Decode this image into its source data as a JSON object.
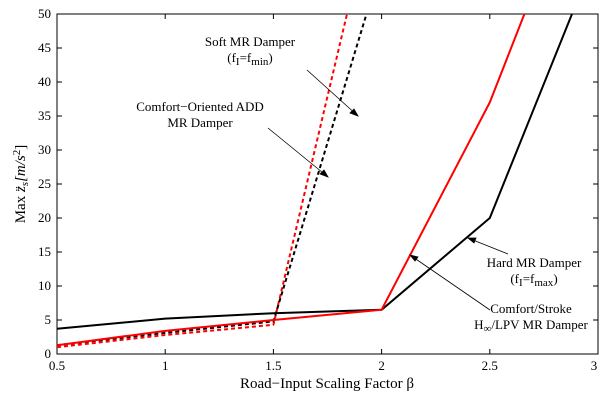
{
  "chart_data": {
    "type": "line",
    "xlabel": "Road−Input Scaling Factor β",
    "ylabel_main": "Max ",
    "ylabel_math": "z̈",
    "ylabel_sub": "s",
    "ylabel_units": "[m/s",
    "ylabel_units_sup": "2",
    "ylabel_units_close": "]",
    "xlim": [
      0.5,
      3
    ],
    "ylim": [
      0,
      50
    ],
    "grid": false,
    "x_ticks": [
      "0.5",
      "1",
      "1.5",
      "2",
      "2.5",
      "3"
    ],
    "x_tick_values": [
      0.5,
      1,
      1.5,
      2,
      2.5,
      3
    ],
    "y_ticks": [
      "0",
      "5",
      "10",
      "15",
      "20",
      "25",
      "30",
      "35",
      "40",
      "45",
      "50"
    ],
    "y_tick_values": [
      0,
      5,
      10,
      15,
      20,
      25,
      30,
      35,
      40,
      45,
      50
    ],
    "series": [
      {
        "key": "soft",
        "color": "#ff0000",
        "dash": "4,3",
        "x": [
          0.5,
          1.0,
          1.5,
          1.84
        ],
        "y": [
          1.0,
          2.8,
          4.3,
          50
        ]
      },
      {
        "key": "add",
        "color": "#000000",
        "dash": "4,3",
        "x": [
          0.5,
          1.0,
          1.5,
          1.93
        ],
        "y": [
          1.3,
          3.1,
          4.8,
          50
        ]
      },
      {
        "key": "hard",
        "color": "#000000",
        "dash": "",
        "x": [
          0.5,
          1.0,
          1.5,
          2.0,
          2.5,
          2.88
        ],
        "y": [
          3.7,
          5.2,
          6.0,
          6.5,
          20.0,
          50
        ]
      },
      {
        "key": "comfort_stroke",
        "color": "#ff0000",
        "dash": "",
        "x": [
          0.5,
          1.0,
          1.5,
          2.0,
          2.5,
          2.66
        ],
        "y": [
          1.3,
          3.4,
          5.0,
          6.5,
          37.0,
          50
        ]
      }
    ],
    "annotations": {
      "soft": {
        "line1": "Soft MR Damper",
        "line2_open": "(f",
        "line2_sub1": "I",
        "line2_mid": "=f",
        "line2_sub2": "min",
        "line2_close": ")"
      },
      "add": {
        "line1": "Comfort−Oriented ADD",
        "line2": "MR Damper"
      },
      "hard": {
        "line1": "Hard MR Damper",
        "line2_open": "(f",
        "line2_sub1": "I",
        "line2_mid": "=f",
        "line2_sub2": "max",
        "line2_close": ")"
      },
      "comfort_stroke": {
        "line1": "Comfort/Stroke",
        "line2_pre": "H",
        "line2_sub": "∞",
        "line2_post": "/LPV MR Damper"
      }
    }
  }
}
